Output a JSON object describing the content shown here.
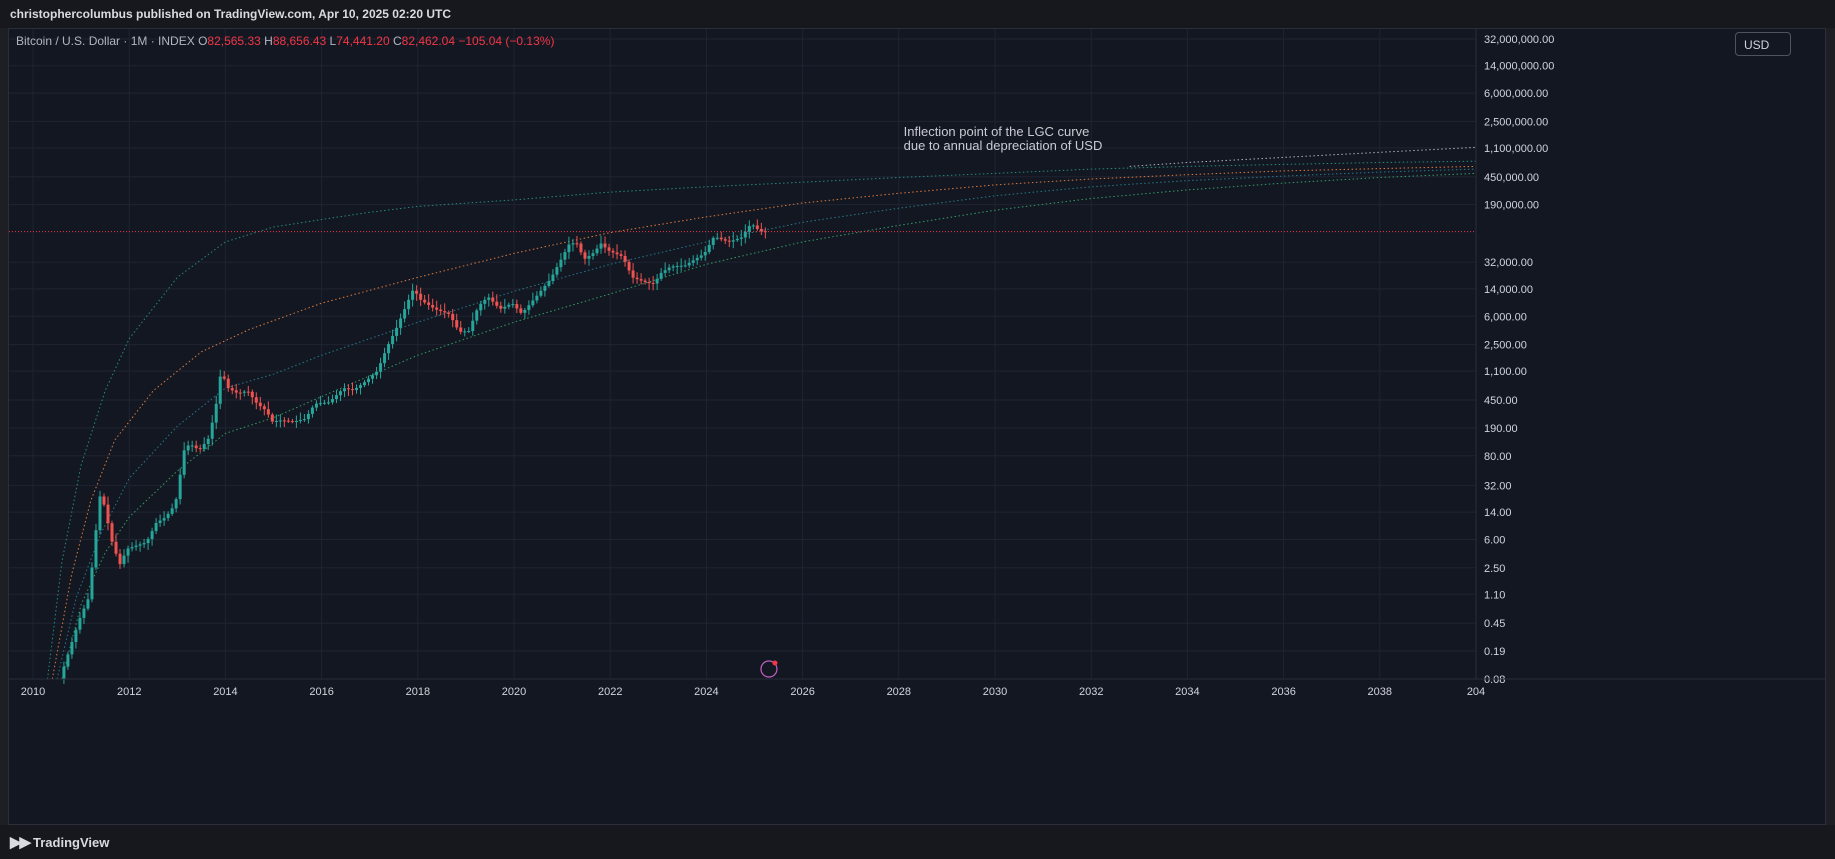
{
  "header": {
    "publish_text": "christophercolumbus published on TradingView.com, Apr 10, 2025 02:20 UTC"
  },
  "symbol": {
    "name": "Bitcoin / U.S. Dollar · 1M · INDEX",
    "o_label": "O",
    "o_value": "82,565.33",
    "h_label": "H",
    "h_value": "88,656.43",
    "l_label": "L",
    "l_value": "74,441.20",
    "c_label": "C",
    "c_value": "82,462.04",
    "change": "−105.04 (−0.13%)"
  },
  "currency_button": "USD",
  "footer": {
    "brand": "TradingView"
  },
  "chart_data": {
    "type": "candlestick",
    "y_scale": "log",
    "x_range": [
      2009.5,
      2040
    ],
    "y_range": [
      0.08,
      32000000
    ],
    "grid": true,
    "y_ticks": [
      {
        "v": 32000000,
        "label": "32,000,000.00"
      },
      {
        "v": 14000000,
        "label": "14,000,000.00"
      },
      {
        "v": 6000000,
        "label": "6,000,000.00"
      },
      {
        "v": 2500000,
        "label": "2,500,000.00"
      },
      {
        "v": 1100000,
        "label": "1,100,000.00"
      },
      {
        "v": 450000,
        "label": "450,000.00"
      },
      {
        "v": 190000,
        "label": "190,000.00"
      },
      {
        "v": 32000,
        "label": "32,000.00"
      },
      {
        "v": 14000,
        "label": "14,000.00"
      },
      {
        "v": 6000,
        "label": "6,000.00"
      },
      {
        "v": 2500,
        "label": "2,500.00"
      },
      {
        "v": 1100,
        "label": "1,100.00"
      },
      {
        "v": 450,
        "label": "450.00"
      },
      {
        "v": 190,
        "label": "190.00"
      },
      {
        "v": 80,
        "label": "80.00"
      },
      {
        "v": 32,
        "label": "32.00"
      },
      {
        "v": 14,
        "label": "14.00"
      },
      {
        "v": 6,
        "label": "6.00"
      },
      {
        "v": 2.5,
        "label": "2.50"
      },
      {
        "v": 1.1,
        "label": "1.10"
      },
      {
        "v": 0.45,
        "label": "0.45"
      },
      {
        "v": 0.19,
        "label": "0.19"
      },
      {
        "v": 0.08,
        "label": "0.08"
      }
    ],
    "x_ticks": [
      2010,
      2012,
      2014,
      2016,
      2018,
      2020,
      2022,
      2024,
      2026,
      2028,
      2030,
      2032,
      2034,
      2036,
      2038
    ],
    "x_tick_last_label": "204",
    "last_price": {
      "value": 82462.04,
      "label": "82,462.04",
      "color": "#f23645"
    },
    "annotation": {
      "line1": "Inflection point of the LGC curve",
      "line2": "due to annual depreciation of USD",
      "x": 2028.1,
      "y": 1600000
    },
    "colors": {
      "up": "#26a69a",
      "down": "#ef5350",
      "background": "#131722",
      "grid": "#1f2431"
    },
    "price_path": [
      [
        2010.6,
        0.08
      ],
      [
        2010.8,
        0.2
      ],
      [
        2011.0,
        0.5
      ],
      [
        2011.2,
        1.0
      ],
      [
        2011.35,
        8
      ],
      [
        2011.45,
        28
      ],
      [
        2011.55,
        14
      ],
      [
        2011.7,
        5
      ],
      [
        2011.85,
        2.8
      ],
      [
        2012.0,
        4.5
      ],
      [
        2012.2,
        5
      ],
      [
        2012.4,
        5.5
      ],
      [
        2012.6,
        10
      ],
      [
        2012.8,
        12
      ],
      [
        2013.0,
        18
      ],
      [
        2013.2,
        110
      ],
      [
        2013.35,
        110
      ],
      [
        2013.5,
        95
      ],
      [
        2013.7,
        140
      ],
      [
        2013.85,
        400
      ],
      [
        2013.95,
        1100
      ],
      [
        2014.1,
        650
      ],
      [
        2014.3,
        550
      ],
      [
        2014.5,
        600
      ],
      [
        2014.7,
        400
      ],
      [
        2014.9,
        320
      ],
      [
        2015.0,
        230
      ],
      [
        2015.2,
        240
      ],
      [
        2015.45,
        230
      ],
      [
        2015.7,
        250
      ],
      [
        2015.9,
        400
      ],
      [
        2016.2,
        420
      ],
      [
        2016.5,
        650
      ],
      [
        2016.7,
        610
      ],
      [
        2016.9,
        750
      ],
      [
        2017.2,
        1100
      ],
      [
        2017.4,
        2300
      ],
      [
        2017.6,
        4200
      ],
      [
        2017.85,
        10000
      ],
      [
        2017.95,
        14000
      ],
      [
        2018.1,
        10000
      ],
      [
        2018.4,
        7500
      ],
      [
        2018.7,
        6400
      ],
      [
        2018.9,
        3700
      ],
      [
        2019.1,
        3800
      ],
      [
        2019.3,
        8200
      ],
      [
        2019.5,
        11000
      ],
      [
        2019.75,
        7500
      ],
      [
        2020.0,
        9000
      ],
      [
        2020.2,
        6500
      ],
      [
        2020.5,
        11000
      ],
      [
        2020.8,
        19000
      ],
      [
        2021.0,
        33000
      ],
      [
        2021.2,
        58000
      ],
      [
        2021.35,
        57000
      ],
      [
        2021.5,
        35000
      ],
      [
        2021.7,
        43000
      ],
      [
        2021.85,
        57000
      ],
      [
        2022.0,
        46000
      ],
      [
        2022.3,
        38000
      ],
      [
        2022.5,
        20000
      ],
      [
        2022.8,
        17000
      ],
      [
        2022.95,
        16500
      ],
      [
        2023.1,
        23000
      ],
      [
        2023.3,
        28000
      ],
      [
        2023.6,
        29000
      ],
      [
        2023.8,
        35000
      ],
      [
        2024.0,
        42000
      ],
      [
        2024.2,
        71000
      ],
      [
        2024.5,
        60000
      ],
      [
        2024.8,
        70000
      ],
      [
        2024.9,
        96000
      ],
      [
        2025.0,
        102000
      ],
      [
        2025.15,
        84000
      ],
      [
        2025.25,
        82462
      ]
    ],
    "curves": [
      {
        "name": "",
        "color": "#2a9d8f",
        "points": [
          [
            2010.3,
            0.08
          ],
          [
            2010.6,
            3
          ],
          [
            2011,
            60
          ],
          [
            2011.5,
            600
          ],
          [
            2012,
            3000
          ],
          [
            2013,
            20000
          ],
          [
            2014,
            60000
          ],
          [
            2015,
            95000
          ],
          [
            2016,
            120000
          ],
          [
            2017,
            150000
          ],
          [
            2018,
            180000
          ],
          [
            2020,
            220000
          ],
          [
            2022,
            280000
          ],
          [
            2024,
            330000
          ],
          [
            2026,
            380000
          ],
          [
            2028,
            440000
          ],
          [
            2030,
            500000
          ],
          [
            2032,
            570000
          ],
          [
            2034,
            620000
          ],
          [
            2036,
            660000
          ],
          [
            2038,
            700000
          ],
          [
            2040,
            730000
          ]
        ]
      },
      {
        "name": "",
        "color": "#ff8c42",
        "points": [
          [
            2010.4,
            0.08
          ],
          [
            2010.8,
            2
          ],
          [
            2011.2,
            20
          ],
          [
            2011.7,
            130
          ],
          [
            2012.5,
            600
          ],
          [
            2013.5,
            2000
          ],
          [
            2014.5,
            4000
          ],
          [
            2016,
            9000
          ],
          [
            2018,
            20000
          ],
          [
            2020,
            42000
          ],
          [
            2022,
            80000
          ],
          [
            2024,
            130000
          ],
          [
            2026,
            200000
          ],
          [
            2028,
            270000
          ],
          [
            2030,
            350000
          ],
          [
            2032,
            420000
          ],
          [
            2034,
            480000
          ],
          [
            2036,
            540000
          ],
          [
            2038,
            580000
          ],
          [
            2040,
            620000
          ]
        ]
      },
      {
        "name": "",
        "color": "#2a8a9d",
        "points": [
          [
            2010.5,
            0.08
          ],
          [
            2010.9,
            1
          ],
          [
            2011.4,
            7
          ],
          [
            2012,
            40
          ],
          [
            2013,
            200
          ],
          [
            2014,
            650
          ],
          [
            2015,
            1000
          ],
          [
            2016,
            1800
          ],
          [
            2018,
            5000
          ],
          [
            2020,
            13000
          ],
          [
            2022,
            30000
          ],
          [
            2024,
            60000
          ],
          [
            2026,
            110000
          ],
          [
            2028,
            170000
          ],
          [
            2030,
            250000
          ],
          [
            2032,
            330000
          ],
          [
            2034,
            400000
          ],
          [
            2036,
            460000
          ],
          [
            2038,
            520000
          ],
          [
            2040,
            570000
          ]
        ]
      },
      {
        "name": "",
        "color": "#3cb371",
        "points": [
          [
            2010.6,
            0.08
          ],
          [
            2011,
            0.8
          ],
          [
            2011.5,
            4
          ],
          [
            2012,
            12
          ],
          [
            2013,
            50
          ],
          [
            2014,
            160
          ],
          [
            2015,
            260
          ],
          [
            2016,
            500
          ],
          [
            2018,
            1800
          ],
          [
            2020,
            5000
          ],
          [
            2022,
            12000
          ],
          [
            2024,
            30000
          ],
          [
            2026,
            60000
          ],
          [
            2028,
            100000
          ],
          [
            2030,
            160000
          ],
          [
            2032,
            230000
          ],
          [
            2034,
            300000
          ],
          [
            2036,
            370000
          ],
          [
            2038,
            440000
          ],
          [
            2040,
            500000
          ]
        ]
      },
      {
        "name": "",
        "color": "#c8cdd6",
        "points": [
          [
            2032.8,
            620000
          ],
          [
            2034,
            700000
          ],
          [
            2036,
            820000
          ],
          [
            2038,
            960000
          ],
          [
            2040,
            1120000
          ]
        ]
      }
    ]
  }
}
